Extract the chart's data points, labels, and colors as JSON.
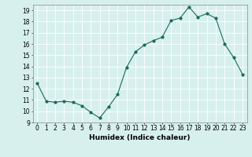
{
  "x": [
    0,
    1,
    2,
    3,
    4,
    5,
    6,
    7,
    8,
    9,
    10,
    11,
    12,
    13,
    14,
    15,
    16,
    17,
    18,
    19,
    20,
    21,
    22,
    23
  ],
  "y": [
    12.5,
    10.9,
    10.8,
    10.9,
    10.8,
    10.5,
    9.9,
    9.4,
    10.4,
    11.5,
    13.9,
    15.3,
    15.9,
    16.3,
    16.6,
    18.1,
    18.3,
    19.3,
    18.4,
    18.7,
    18.3,
    16.0,
    14.8,
    13.3
  ],
  "line_color": "#1a6b5a",
  "marker": "o",
  "marker_size": 2,
  "bg_color": "#d7f0ee",
  "grid_color": "#ffffff",
  "xlabel": "Humidex (Indice chaleur)",
  "ylim": [
    9,
    19.5
  ],
  "xlim": [
    -0.5,
    23.5
  ],
  "yticks": [
    9,
    10,
    11,
    12,
    13,
    14,
    15,
    16,
    17,
    18,
    19
  ],
  "xticks": [
    0,
    1,
    2,
    3,
    4,
    5,
    6,
    7,
    8,
    9,
    10,
    11,
    12,
    13,
    14,
    15,
    16,
    17,
    18,
    19,
    20,
    21,
    22,
    23
  ],
  "label_fontsize": 6.5,
  "tick_fontsize": 5.5
}
